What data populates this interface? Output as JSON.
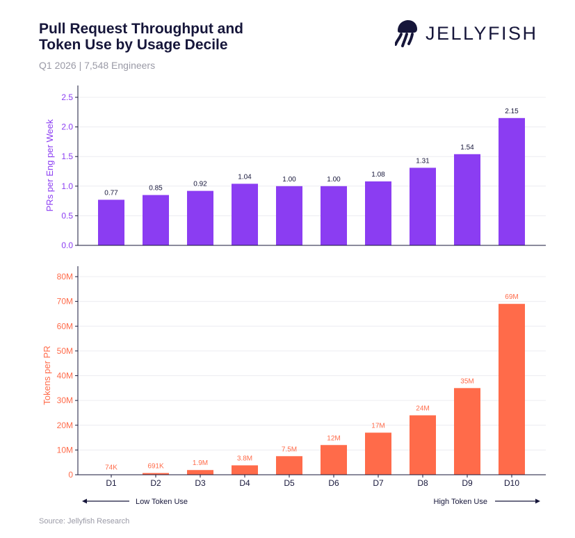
{
  "header": {
    "title_line1": "Pull Request Throughput and",
    "title_line2": "Token Use by Usage Decile",
    "subtitle": "Q1 2026 | 7,548 Engineers"
  },
  "brand": {
    "name": "JELLYFISH",
    "icon": "jellyfish-icon"
  },
  "footer": {
    "source": "Source: Jellyfish Research"
  },
  "colors": {
    "purple": "#8b3df2",
    "orange": "#ff6b4a",
    "navy": "#16163a",
    "grid": "#ececf1"
  },
  "chart_data": [
    {
      "type": "bar",
      "categories": [
        "D1",
        "D2",
        "D3",
        "D4",
        "D5",
        "D6",
        "D7",
        "D8",
        "D9",
        "D10"
      ],
      "values": [
        0.77,
        0.85,
        0.92,
        1.04,
        1.0,
        1.0,
        1.08,
        1.31,
        1.54,
        2.15
      ],
      "value_labels": [
        "0.77",
        "0.85",
        "0.92",
        "1.04",
        "1.00",
        "1.00",
        "1.08",
        "1.31",
        "1.54",
        "2.15"
      ],
      "ylabel": "PRs per Eng per Week",
      "ylim": [
        0,
        2.5
      ],
      "yticks": [
        0,
        0.5,
        1.0,
        1.5,
        2.0,
        2.5
      ],
      "ytick_labels": [
        "0.0",
        "0.5",
        "1.0",
        "1.5",
        "2.0",
        "2.5"
      ],
      "grid": true,
      "color": "#8b3df2"
    },
    {
      "type": "bar",
      "categories": [
        "D1",
        "D2",
        "D3",
        "D4",
        "D5",
        "D6",
        "D7",
        "D8",
        "D9",
        "D10"
      ],
      "values": [
        74000,
        691000,
        1900000,
        3800000,
        7500000,
        12000000,
        17000000,
        24000000,
        35000000,
        69000000
      ],
      "value_labels": [
        "74K",
        "691K",
        "1.9M",
        "3.8M",
        "7.5M",
        "12M",
        "17M",
        "24M",
        "35M",
        "69M"
      ],
      "ylabel": "Tokens per PR",
      "ylim": [
        0,
        80000000
      ],
      "yticks": [
        0,
        10000000,
        20000000,
        30000000,
        40000000,
        50000000,
        60000000,
        70000000,
        80000000
      ],
      "ytick_labels": [
        "0",
        "10M",
        "20M",
        "30M",
        "40M",
        "50M",
        "60M",
        "70M",
        "80M"
      ],
      "grid": true,
      "color": "#ff6b4a"
    }
  ],
  "x_axis": {
    "left_label": "Low Token Use",
    "right_label": "High Token Use"
  }
}
